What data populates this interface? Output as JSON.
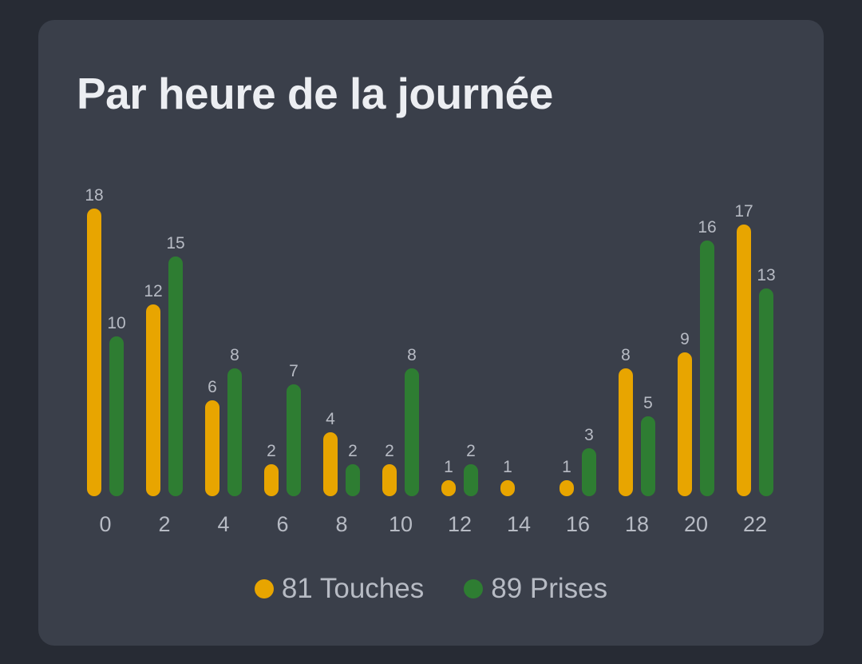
{
  "card": {
    "title": "Par heure de la journée"
  },
  "colors": {
    "background": "#272b34",
    "card": "#3a3f4a",
    "touches": "#e8a500",
    "prises": "#2e7d32"
  },
  "legend": {
    "touches": "81 Touches",
    "prises": "89 Prises"
  },
  "chart_data": {
    "type": "bar",
    "title": "Par heure de la journée",
    "categories": [
      "0",
      "2",
      "4",
      "6",
      "8",
      "10",
      "12",
      "14",
      "16",
      "18",
      "20",
      "22"
    ],
    "series": [
      {
        "name": "Touches",
        "values": [
          18,
          12,
          6,
          2,
          4,
          2,
          1,
          1,
          1,
          8,
          9,
          17
        ]
      },
      {
        "name": "Prises",
        "values": [
          10,
          15,
          8,
          7,
          2,
          8,
          2,
          0,
          3,
          5,
          16,
          13
        ]
      }
    ],
    "ylim": [
      0,
      18
    ],
    "grid": false,
    "legend_position": "bottom"
  }
}
